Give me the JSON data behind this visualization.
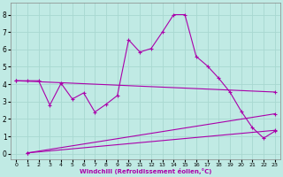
{
  "xlabel": "Windchill (Refroidissement éolien,°C)",
  "bg_color": "#c0eae4",
  "grid_color": "#a8d8d0",
  "line_color": "#aa00aa",
  "xlim": [
    -0.5,
    23.5
  ],
  "ylim": [
    -0.3,
    8.7
  ],
  "xticks": [
    0,
    1,
    2,
    3,
    4,
    5,
    6,
    7,
    8,
    9,
    10,
    11,
    12,
    13,
    14,
    15,
    16,
    17,
    18,
    19,
    20,
    21,
    22,
    23
  ],
  "yticks": [
    0,
    1,
    2,
    3,
    4,
    5,
    6,
    7,
    8
  ],
  "line1_x": [
    0,
    1,
    2,
    3,
    4,
    5,
    6,
    7,
    8,
    9,
    10,
    11,
    12,
    13,
    14,
    15,
    16,
    17,
    18,
    19,
    20,
    21,
    22,
    23
  ],
  "line1_y": [
    4.2,
    4.2,
    4.2,
    2.8,
    4.05,
    3.15,
    3.5,
    2.4,
    2.85,
    3.35,
    6.55,
    5.85,
    6.05,
    7.0,
    8.0,
    8.0,
    5.6,
    5.05,
    4.35,
    3.55,
    2.45,
    1.5,
    0.9,
    1.3
  ],
  "line2_x": [
    0,
    23
  ],
  "line2_y": [
    4.2,
    3.55
  ],
  "line3_x": [
    1,
    23
  ],
  "line3_y": [
    0.05,
    2.3
  ],
  "line4_x": [
    1,
    23
  ],
  "line4_y": [
    0.05,
    1.35
  ]
}
